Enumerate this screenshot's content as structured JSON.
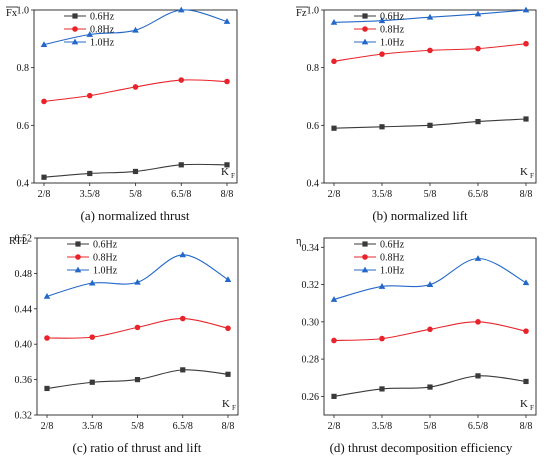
{
  "chart_data": [
    {
      "type": "line",
      "panel_label": "(a) normalized thrust",
      "ylabel": "Fx",
      "ylabel_overline": true,
      "xlabel_main": "K",
      "xlabel_sub": "F",
      "categories": [
        "2/8",
        "3.5/8",
        "5/8",
        "6.5/8",
        "8/8"
      ],
      "ylim": [
        0.4,
        1.0
      ],
      "yticks": [
        "0.4",
        "0.6",
        "0.8",
        "1.0"
      ],
      "legend_position": "top-left",
      "series": [
        {
          "name": "0.6Hz",
          "color": "#3a3a3a",
          "marker": "square",
          "values": [
            0.42,
            0.433,
            0.44,
            0.463,
            0.463
          ]
        },
        {
          "name": "0.8Hz",
          "color": "#e8242a",
          "marker": "circle",
          "values": [
            0.683,
            0.703,
            0.733,
            0.757,
            0.752
          ]
        },
        {
          "name": "1.0Hz",
          "color": "#2368c9",
          "marker": "triangle",
          "values": [
            0.88,
            0.915,
            0.93,
            1.0,
            0.96
          ]
        }
      ]
    },
    {
      "type": "line",
      "panel_label": "(b) normalized lift",
      "ylabel": "Fz",
      "ylabel_overline": true,
      "xlabel_main": "K",
      "xlabel_sub": "F",
      "categories": [
        "2/8",
        "3.5/8",
        "5/8",
        "6.5/8",
        "8/8"
      ],
      "ylim": [
        0.4,
        1.0
      ],
      "yticks": [
        "0.4",
        "0.6",
        "0.8",
        "1.0"
      ],
      "legend_position": "top-left",
      "series": [
        {
          "name": "0.6Hz",
          "color": "#3a3a3a",
          "marker": "square",
          "values": [
            0.59,
            0.595,
            0.6,
            0.613,
            0.622
          ]
        },
        {
          "name": "0.8Hz",
          "color": "#e8242a",
          "marker": "circle",
          "values": [
            0.822,
            0.847,
            0.86,
            0.866,
            0.883
          ]
        },
        {
          "name": "1.0Hz",
          "color": "#2368c9",
          "marker": "triangle",
          "values": [
            0.957,
            0.963,
            0.975,
            0.986,
            1.0
          ]
        }
      ]
    },
    {
      "type": "line",
      "panel_label": "(c) ratio of thrust and lift",
      "ylabel": "RTL",
      "ylabel_overline": false,
      "xlabel_main": "K",
      "xlabel_sub": "F",
      "categories": [
        "2/8",
        "3.5/8",
        "5/8",
        "6.5/8",
        "8/8"
      ],
      "ylim": [
        0.32,
        0.52
      ],
      "yticks": [
        "0.32",
        "0.36",
        "0.40",
        "0.44",
        "0.48",
        "0.52"
      ],
      "legend_position": "top-left",
      "series": [
        {
          "name": "0.6Hz",
          "color": "#3a3a3a",
          "marker": "square",
          "values": [
            0.35,
            0.357,
            0.36,
            0.371,
            0.366
          ]
        },
        {
          "name": "0.8Hz",
          "color": "#e8242a",
          "marker": "circle",
          "values": [
            0.407,
            0.408,
            0.419,
            0.429,
            0.418
          ]
        },
        {
          "name": "1.0Hz",
          "color": "#2368c9",
          "marker": "triangle",
          "values": [
            0.454,
            0.469,
            0.47,
            0.501,
            0.473
          ]
        }
      ]
    },
    {
      "type": "line",
      "panel_label": "(d) thrust decomposition efficiency",
      "ylabel": "η",
      "ylabel_overline": false,
      "xlabel_main": "K",
      "xlabel_sub": "F",
      "categories": [
        "2/8",
        "3.5/8",
        "5/8",
        "6.5/8",
        "8/8"
      ],
      "ylim": [
        0.25,
        0.345
      ],
      "yticks": [
        "0.26",
        "0.28",
        "0.30",
        "0.32",
        "0.34"
      ],
      "legend_position": "top-left",
      "series": [
        {
          "name": "0.6Hz",
          "color": "#3a3a3a",
          "marker": "square",
          "values": [
            0.26,
            0.264,
            0.265,
            0.271,
            0.268
          ]
        },
        {
          "name": "0.8Hz",
          "color": "#e8242a",
          "marker": "circle",
          "values": [
            0.29,
            0.291,
            0.296,
            0.3,
            0.295
          ]
        },
        {
          "name": "1.0Hz",
          "color": "#2368c9",
          "marker": "triangle",
          "values": [
            0.312,
            0.319,
            0.32,
            0.334,
            0.321
          ]
        }
      ]
    }
  ]
}
